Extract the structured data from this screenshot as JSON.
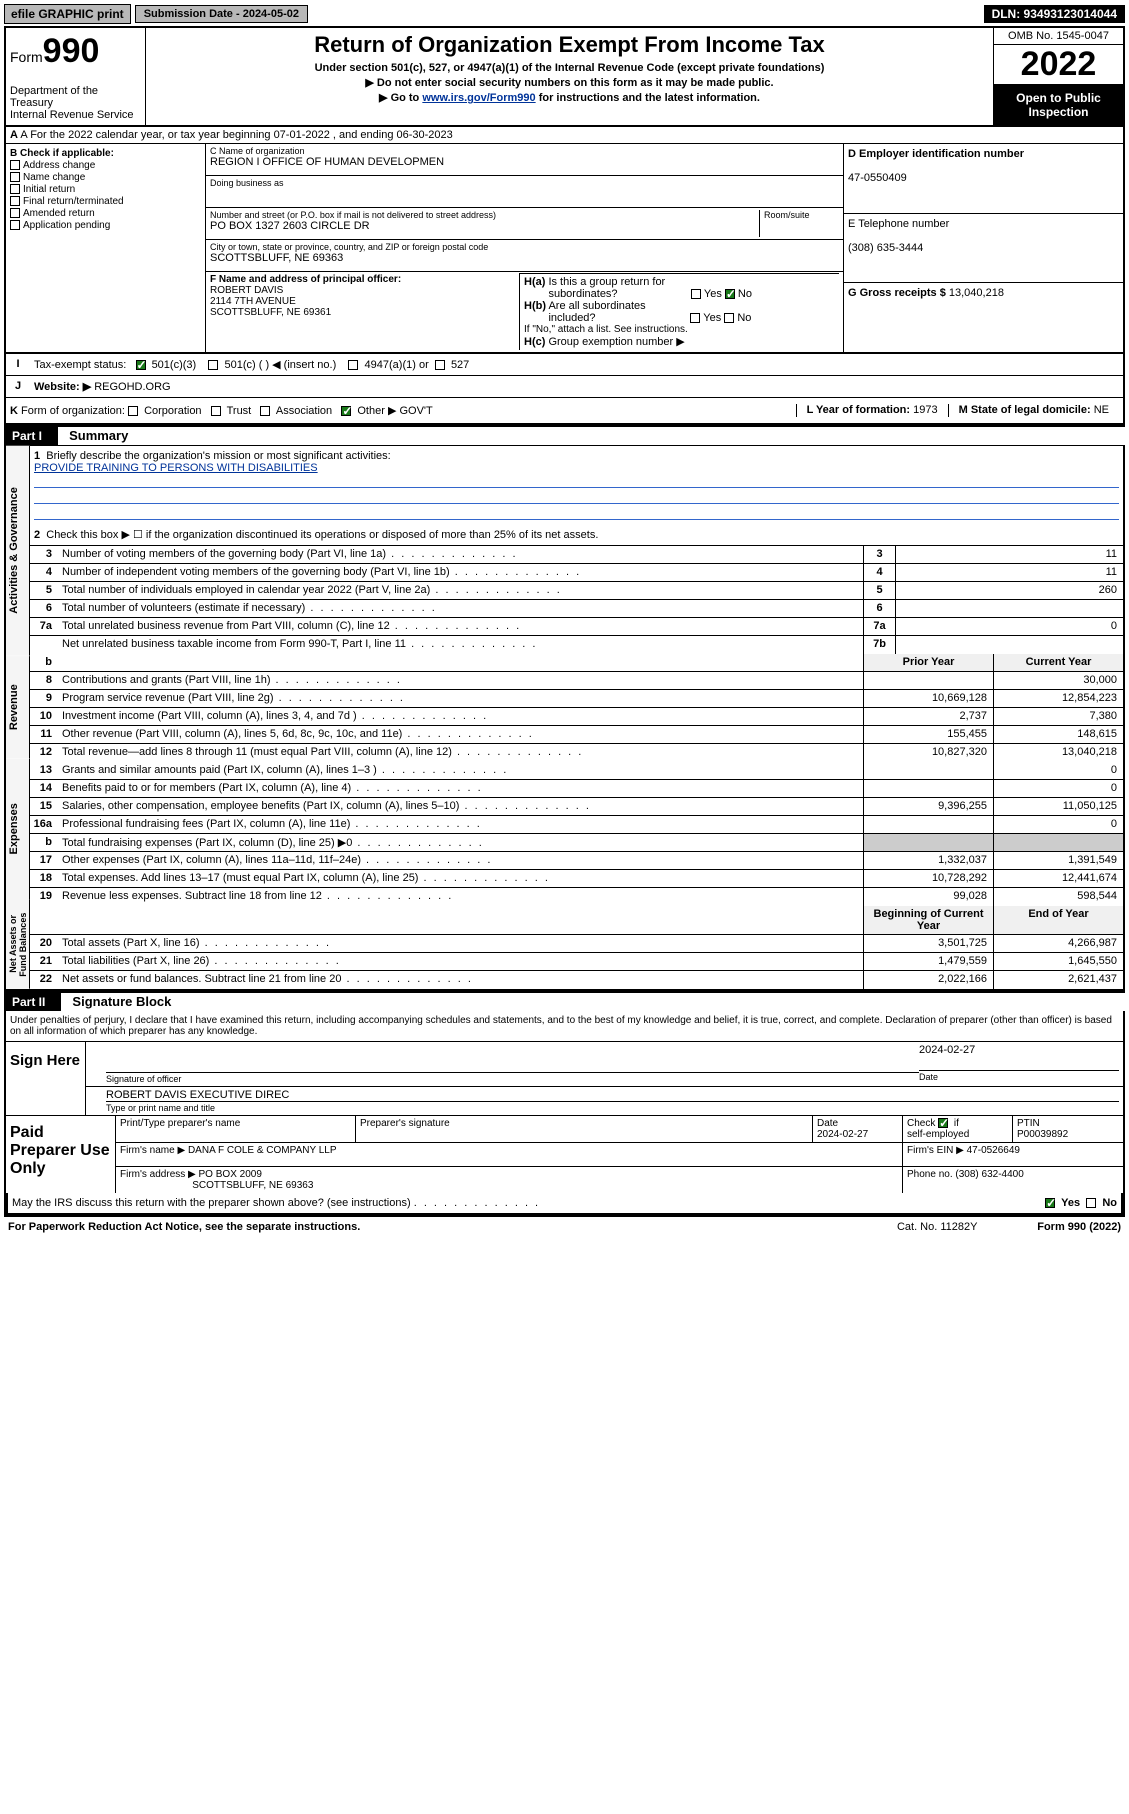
{
  "topbar": {
    "efile_label": "efile GRAPHIC print",
    "sub_label": "Submission Date - 2024-05-02",
    "dln": "DLN: 93493123014044"
  },
  "header": {
    "form_word": "Form",
    "form_number": "990",
    "dept": "Department of the Treasury\nInternal Revenue Service",
    "title": "Return of Organization Exempt From Income Tax",
    "sub1": "Under section 501(c), 527, or 4947(a)(1) of the Internal Revenue Code (except private foundations)",
    "sub2": "▶ Do not enter social security numbers on this form as it may be made public.",
    "sub3_pre": "▶ Go to ",
    "sub3_link": "www.irs.gov/Form990",
    "sub3_post": " for instructions and the latest information.",
    "omb": "OMB No. 1545-0047",
    "year": "2022",
    "inspection": "Open to Public Inspection"
  },
  "line_a": "A For the 2022 calendar year, or tax year beginning 07-01-2022    , and ending 06-30-2023",
  "box_b": {
    "header": "B Check if applicable:",
    "opts": [
      "Address change",
      "Name change",
      "Initial return",
      "Final return/terminated",
      "Amended return",
      "Application pending"
    ]
  },
  "box_c": {
    "name_label": "C Name of organization",
    "name": "REGION I OFFICE OF HUMAN DEVELOPMEN",
    "dba_label": "Doing business as",
    "dba": "",
    "street_label": "Number and street (or P.O. box if mail is not delivered to street address)",
    "room_label": "Room/suite",
    "street": "PO BOX 1327 2603 CIRCLE DR",
    "city_label": "City or town, state or province, country, and ZIP or foreign postal code",
    "city": "SCOTTSBLUFF, NE  69363"
  },
  "box_d": {
    "label": "D Employer identification number",
    "val": "47-0550409"
  },
  "box_e": {
    "label": "E Telephone number",
    "val": "(308) 635-3444"
  },
  "box_g": {
    "label": "G Gross receipts $",
    "val": "13,040,218"
  },
  "box_f": {
    "label": "F  Name and address of principal officer:",
    "name": "ROBERT DAVIS",
    "addr1": "2114 7TH AVENUE",
    "addr2": "SCOTTSBLUFF, NE  69361"
  },
  "box_h": {
    "a_label": "H(a)  Is this a group return for subordinates?",
    "a_yes": "Yes",
    "a_no": "No",
    "b_label": "H(b)  Are all subordinates included?",
    "b_yes": "Yes",
    "b_no": "No",
    "b_note": "If \"No,\" attach a list. See instructions.",
    "c_label": "H(c)  Group exemption number ▶"
  },
  "row_i": {
    "lbl": "I",
    "label": "Tax-exempt status:",
    "opts": [
      "501(c)(3)",
      "501(c) (  ) ◀ (insert no.)",
      "4947(a)(1) or",
      "527"
    ]
  },
  "row_j": {
    "lbl": "J",
    "label": "Website: ▶",
    "val": "REGOHD.ORG"
  },
  "row_k": {
    "lbl": "K",
    "label": "Form of organization:",
    "opts": [
      "Corporation",
      "Trust",
      "Association",
      "Other ▶"
    ],
    "other_val": "GOV'T",
    "l_label": "L Year of formation:",
    "l_val": "1973",
    "m_label": "M State of legal domicile:",
    "m_val": "NE"
  },
  "part1": {
    "tag": "Part I",
    "title": "Summary"
  },
  "summary": {
    "vtabs": [
      "Activities & Governance",
      "Revenue",
      "Expenses",
      "Net Assets or Fund Balances"
    ],
    "line1_label": "Briefly describe the organization's mission or most significant activities:",
    "line1_val": "PROVIDE TRAINING TO PERSONS WITH DISABILITIES",
    "line2": "Check this box ▶ ☐  if the organization discontinued its operations or disposed of more than 25% of its net assets.",
    "rows_gov": [
      {
        "n": "3",
        "t": "Number of voting members of the governing body (Part VI, line 1a)",
        "b": "3",
        "v": "11"
      },
      {
        "n": "4",
        "t": "Number of independent voting members of the governing body (Part VI, line 1b)",
        "b": "4",
        "v": "11"
      },
      {
        "n": "5",
        "t": "Total number of individuals employed in calendar year 2022 (Part V, line 2a)",
        "b": "5",
        "v": "260"
      },
      {
        "n": "6",
        "t": "Total number of volunteers (estimate if necessary)",
        "b": "6",
        "v": ""
      },
      {
        "n": "7a",
        "t": "Total unrelated business revenue from Part VIII, column (C), line 12",
        "b": "7a",
        "v": "0"
      },
      {
        "n": "",
        "t": "Net unrelated business taxable income from Form 990-T, Part I, line 11",
        "b": "7b",
        "v": ""
      }
    ],
    "col_headers": {
      "b": "b",
      "prior": "Prior Year",
      "current": "Current Year"
    },
    "rows_rev": [
      {
        "n": "8",
        "t": "Contributions and grants (Part VIII, line 1h)",
        "p": "",
        "c": "30,000"
      },
      {
        "n": "9",
        "t": "Program service revenue (Part VIII, line 2g)",
        "p": "10,669,128",
        "c": "12,854,223"
      },
      {
        "n": "10",
        "t": "Investment income (Part VIII, column (A), lines 3, 4, and 7d )",
        "p": "2,737",
        "c": "7,380"
      },
      {
        "n": "11",
        "t": "Other revenue (Part VIII, column (A), lines 5, 6d, 8c, 9c, 10c, and 11e)",
        "p": "155,455",
        "c": "148,615"
      },
      {
        "n": "12",
        "t": "Total revenue—add lines 8 through 11 (must equal Part VIII, column (A), line 12)",
        "p": "10,827,320",
        "c": "13,040,218"
      }
    ],
    "rows_exp": [
      {
        "n": "13",
        "t": "Grants and similar amounts paid (Part IX, column (A), lines 1–3 )",
        "p": "",
        "c": "0"
      },
      {
        "n": "14",
        "t": "Benefits paid to or for members (Part IX, column (A), line 4)",
        "p": "",
        "c": "0"
      },
      {
        "n": "15",
        "t": "Salaries, other compensation, employee benefits (Part IX, column (A), lines 5–10)",
        "p": "9,396,255",
        "c": "11,050,125"
      },
      {
        "n": "16a",
        "t": "Professional fundraising fees (Part IX, column (A), line 11e)",
        "p": "",
        "c": "0"
      },
      {
        "n": "b",
        "t": "Total fundraising expenses (Part IX, column (D), line 25) ▶0",
        "p": "GREY",
        "c": "GREY"
      },
      {
        "n": "17",
        "t": "Other expenses (Part IX, column (A), lines 11a–11d, 11f–24e)",
        "p": "1,332,037",
        "c": "1,391,549"
      },
      {
        "n": "18",
        "t": "Total expenses. Add lines 13–17 (must equal Part IX, column (A), line 25)",
        "p": "10,728,292",
        "c": "12,441,674"
      },
      {
        "n": "19",
        "t": "Revenue less expenses. Subtract line 18 from line 12",
        "p": "99,028",
        "c": "598,544"
      }
    ],
    "net_headers": {
      "begin": "Beginning of Current Year",
      "end": "End of Year"
    },
    "rows_net": [
      {
        "n": "20",
        "t": "Total assets (Part X, line 16)",
        "p": "3,501,725",
        "c": "4,266,987"
      },
      {
        "n": "21",
        "t": "Total liabilities (Part X, line 26)",
        "p": "1,479,559",
        "c": "1,645,550"
      },
      {
        "n": "22",
        "t": "Net assets or fund balances. Subtract line 21 from line 20",
        "p": "2,022,166",
        "c": "2,621,437"
      }
    ]
  },
  "part2": {
    "tag": "Part II",
    "title": "Signature Block"
  },
  "sig": {
    "intro": "Under penalties of perjury, I declare that I have examined this return, including accompanying schedules and statements, and to the best of my knowledge and belief, it is true, correct, and complete. Declaration of preparer (other than officer) is based on all information of which preparer has any knowledge.",
    "sign_here": "Sign Here",
    "sig_label": "Signature of officer",
    "date_label": "Date",
    "date_val": "2024-02-27",
    "name_val": "ROBERT DAVIS  EXECUTIVE DIREC",
    "name_label": "Type or print name and title"
  },
  "paid": {
    "label": "Paid Preparer Use Only",
    "h1": "Print/Type preparer's name",
    "h2": "Preparer's signature",
    "h3": "Date",
    "h3v": "2024-02-27",
    "h4": "Check ☑ if self-employed",
    "h5": "PTIN",
    "h5v": "P00039892",
    "firm_name_lbl": "Firm's name    ▶",
    "firm_name": "DANA F COLE & COMPANY LLP",
    "firm_ein_lbl": "Firm's EIN ▶",
    "firm_ein": "47-0526649",
    "firm_addr_lbl": "Firm's address ▶",
    "firm_addr1": "PO BOX 2009",
    "firm_addr2": "SCOTTSBLUFF, NE  69363",
    "phone_lbl": "Phone no.",
    "phone": "(308) 632-4400"
  },
  "footer": {
    "discuss": "May the IRS discuss this return with the preparer shown above? (see instructions)",
    "yes": "Yes",
    "no": "No",
    "paperwork": "For Paperwork Reduction Act Notice, see the separate instructions.",
    "cat": "Cat. No. 11282Y",
    "formno": "Form 990 (2022)"
  }
}
